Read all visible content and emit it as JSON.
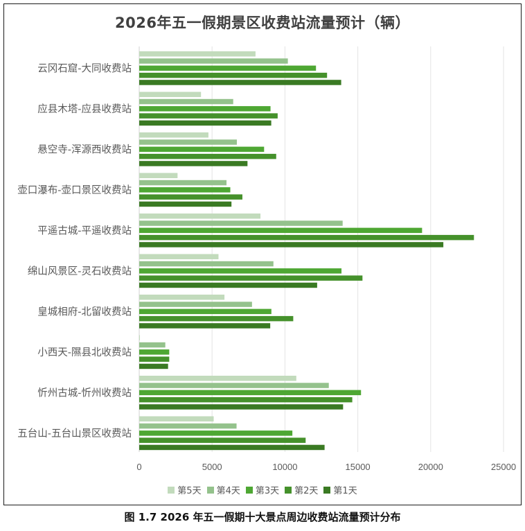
{
  "chart_data": {
    "type": "bar",
    "orientation": "horizontal",
    "title": "2026年五一假期景区收费站流量预计（辆）",
    "caption": "图 1.7 2026 年五一假期十大景点周边收费站流量预计分布",
    "xlabel": "",
    "ylabel": "",
    "xlim": [
      0,
      25000
    ],
    "xticks": [
      0,
      5000,
      10000,
      15000,
      20000,
      25000
    ],
    "xtick_labels": [
      "0",
      "5000",
      "10000",
      "15000",
      "20000",
      "25000"
    ],
    "grid": "vertical",
    "legend_position": "bottom",
    "categories": [
      "云冈石窟-大同收费站",
      "应县木塔-应县收费站",
      "悬空寺-浑源西收费站",
      "壶口瀑布-壶口景区收费站",
      "平遥古城-平遥收费站",
      "绵山风景区-灵石收费站",
      "皇城相府-北留收费站",
      "小西天-隰县北收费站",
      "忻州古城-忻州收费站",
      "五台山-五台山景区收费站"
    ],
    "series": [
      {
        "name": "第5天",
        "color": "#c2dbbc",
        "values": [
          7980,
          4240,
          4750,
          2630,
          8320,
          5440,
          5850,
          30,
          10780,
          5110
        ]
      },
      {
        "name": "第4天",
        "color": "#94c28c",
        "values": [
          10200,
          6450,
          6700,
          5990,
          13960,
          9210,
          7740,
          1790,
          13010,
          6680
        ]
      },
      {
        "name": "第3天",
        "color": "#4ea733",
        "values": [
          12130,
          9010,
          8570,
          6250,
          19410,
          13880,
          9070,
          2060,
          15220,
          10510
        ]
      },
      {
        "name": "第2天",
        "color": "#45912b",
        "values": [
          12890,
          9500,
          9400,
          7080,
          22970,
          15320,
          10570,
          2060,
          14620,
          11420
        ]
      },
      {
        "name": "第1天",
        "color": "#3a7a23",
        "values": [
          13860,
          9060,
          7430,
          6330,
          20870,
          12210,
          8990,
          1980,
          13990,
          12720
        ]
      }
    ]
  },
  "colors": {
    "grid": "#e3e3e3",
    "axis_text": "#595959",
    "category_text": "#595959",
    "title_text": "#404040"
  }
}
